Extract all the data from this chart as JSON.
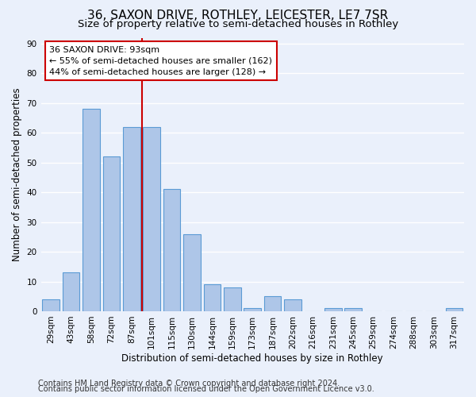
{
  "title_line1": "36, SAXON DRIVE, ROTHLEY, LEICESTER, LE7 7SR",
  "title_line2": "Size of property relative to semi-detached houses in Rothley",
  "xlabel": "Distribution of semi-detached houses by size in Rothley",
  "ylabel": "Number of semi-detached properties",
  "categories": [
    "29sqm",
    "43sqm",
    "58sqm",
    "72sqm",
    "87sqm",
    "101sqm",
    "115sqm",
    "130sqm",
    "144sqm",
    "159sqm",
    "173sqm",
    "187sqm",
    "202sqm",
    "216sqm",
    "231sqm",
    "245sqm",
    "259sqm",
    "274sqm",
    "288sqm",
    "303sqm",
    "317sqm"
  ],
  "values": [
    4,
    13,
    68,
    52,
    62,
    62,
    41,
    26,
    9,
    8,
    1,
    5,
    4,
    0,
    1,
    1,
    0,
    0,
    0,
    0,
    1
  ],
  "bar_color": "#aec6e8",
  "bar_edge_color": "#5b9bd5",
  "vline_color": "#cc0000",
  "annotation_line1": "36 SAXON DRIVE: 93sqm",
  "annotation_line2": "← 55% of semi-detached houses are smaller (162)",
  "annotation_line3": "44% of semi-detached houses are larger (128) →",
  "annotation_box_color": "white",
  "annotation_box_edge_color": "#cc0000",
  "ylim": [
    0,
    92
  ],
  "yticks": [
    0,
    10,
    20,
    30,
    40,
    50,
    60,
    70,
    80,
    90
  ],
  "footer_line1": "Contains HM Land Registry data © Crown copyright and database right 2024.",
  "footer_line2": "Contains public sector information licensed under the Open Government Licence v3.0.",
  "background_color": "#eaf0fb",
  "plot_background_color": "#eaf0fb",
  "grid_color": "white",
  "title_fontsize": 11,
  "subtitle_fontsize": 9.5,
  "axis_label_fontsize": 8.5,
  "tick_fontsize": 7.5,
  "annotation_fontsize": 8,
  "footer_fontsize": 7
}
